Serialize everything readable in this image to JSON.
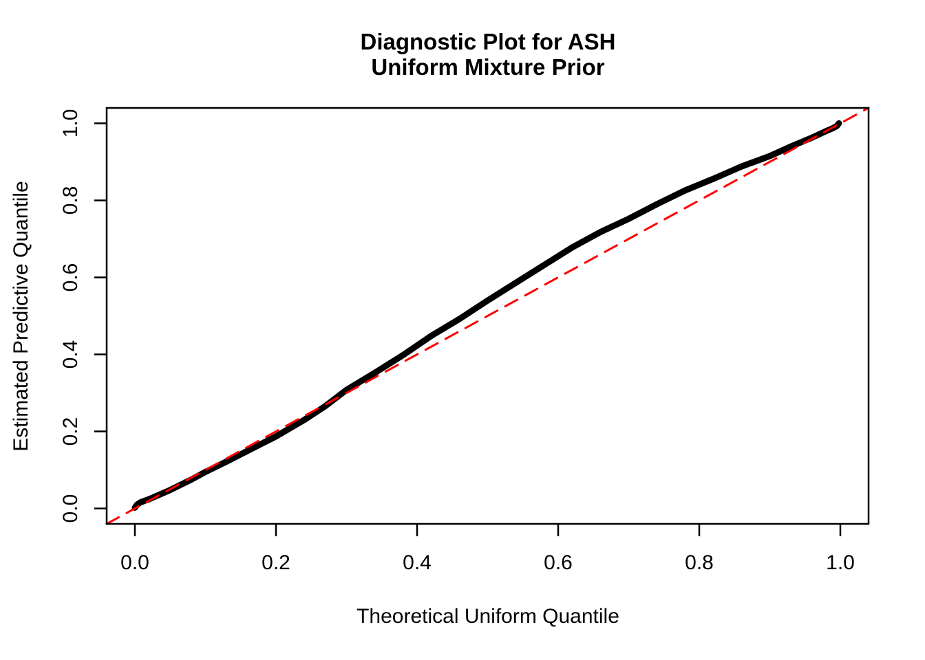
{
  "title": {
    "line1": "Diagnostic Plot for ASH",
    "line2": "Uniform Mixture Prior"
  },
  "axes": {
    "x_label": "Theoretical Uniform Quantile",
    "y_label": "Estimated Predictive Quantile",
    "x_tick_labels": [
      "0.0",
      "0.2",
      "0.4",
      "0.6",
      "0.8",
      "1.0"
    ],
    "y_tick_labels": [
      "0.0",
      "0.2",
      "0.4",
      "0.6",
      "0.8",
      "1.0"
    ]
  },
  "colors": {
    "curve": "#000000",
    "reference_line": "#FF0000",
    "axis": "#000000",
    "background": "#FFFFFF"
  },
  "chart_data": {
    "type": "line",
    "title": "Diagnostic Plot for ASH\nUniform Mixture Prior",
    "xlabel": "Theoretical Uniform Quantile",
    "ylabel": "Estimated Predictive Quantile",
    "xlim": [
      -0.04,
      1.04
    ],
    "ylim": [
      -0.04,
      1.04
    ],
    "x_tick_values": [
      0.0,
      0.2,
      0.4,
      0.6,
      0.8,
      1.0
    ],
    "y_tick_values": [
      0.0,
      0.2,
      0.4,
      0.6,
      0.8,
      1.0
    ],
    "grid": false,
    "legend": "none",
    "series": [
      {
        "name": "estimated-predictive-quantile",
        "type": "line",
        "style": "solid",
        "color": "#000000",
        "width": 9,
        "x": [
          0.0,
          0.003,
          0.008,
          0.02,
          0.05,
          0.08,
          0.1,
          0.13,
          0.16,
          0.2,
          0.24,
          0.27,
          0.3,
          0.34,
          0.38,
          0.42,
          0.46,
          0.5,
          0.54,
          0.58,
          0.62,
          0.66,
          0.7,
          0.74,
          0.78,
          0.82,
          0.86,
          0.9,
          0.93,
          0.96,
          0.98,
          0.99,
          0.995,
          0.998
        ],
        "y": [
          0.002,
          0.01,
          0.016,
          0.024,
          0.048,
          0.075,
          0.095,
          0.122,
          0.15,
          0.187,
          0.23,
          0.266,
          0.308,
          0.352,
          0.398,
          0.448,
          0.492,
          0.54,
          0.586,
          0.632,
          0.678,
          0.718,
          0.752,
          0.79,
          0.826,
          0.856,
          0.888,
          0.915,
          0.94,
          0.963,
          0.98,
          0.988,
          0.993,
          1.0
        ]
      },
      {
        "name": "reference-diagonal",
        "type": "line",
        "style": "dashed",
        "color": "#FF0000",
        "width": 3,
        "x": [
          -0.04,
          1.04
        ],
        "y": [
          -0.04,
          1.04
        ]
      }
    ]
  }
}
